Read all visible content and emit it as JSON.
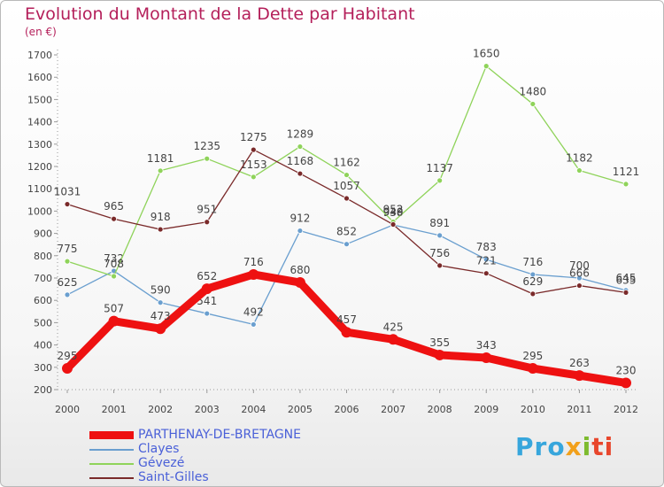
{
  "title": "Evolution du Montant de la Dette par Habitant",
  "unit": "(en €)",
  "brand": "Proxiti",
  "chart_data": {
    "type": "line",
    "x": [
      2000,
      2001,
      2002,
      2003,
      2004,
      2005,
      2006,
      2007,
      2008,
      2009,
      2010,
      2011,
      2012
    ],
    "ylim": [
      200,
      1700
    ],
    "y_ticks": [
      200,
      300,
      400,
      500,
      600,
      700,
      800,
      900,
      1000,
      1100,
      1200,
      1300,
      1400,
      1500,
      1600,
      1700
    ],
    "grid": false,
    "legend_position": "bottom-left",
    "series": [
      {
        "name": "Clayes",
        "color": "#6a9fcf",
        "values": [
          625,
          732,
          590,
          541,
          492,
          912,
          852,
          938,
          891,
          783,
          716,
          700,
          645
        ]
      },
      {
        "name": "Gévezé",
        "color": "#8fd35a",
        "values": [
          775,
          708,
          1181,
          1235,
          1153,
          1289,
          1162,
          952,
          1137,
          1650,
          1480,
          1182,
          1121
        ]
      },
      {
        "name": "Saint-Gilles",
        "color": "#7a2a2a",
        "values": [
          1031,
          965,
          918,
          951,
          1275,
          1168,
          1057,
          940,
          756,
          721,
          629,
          666,
          635
        ]
      },
      {
        "name": "PARTHENAY-DE-BRETAGNE",
        "color": "#ee1111",
        "values": [
          295,
          507,
          473,
          652,
          716,
          680,
          457,
          425,
          355,
          343,
          295,
          263,
          230
        ]
      }
    ],
    "legend": [
      "PARTHENAY-DE-BRETAGNE",
      "Clayes",
      "Gévezé",
      "Saint-Gilles"
    ]
  }
}
